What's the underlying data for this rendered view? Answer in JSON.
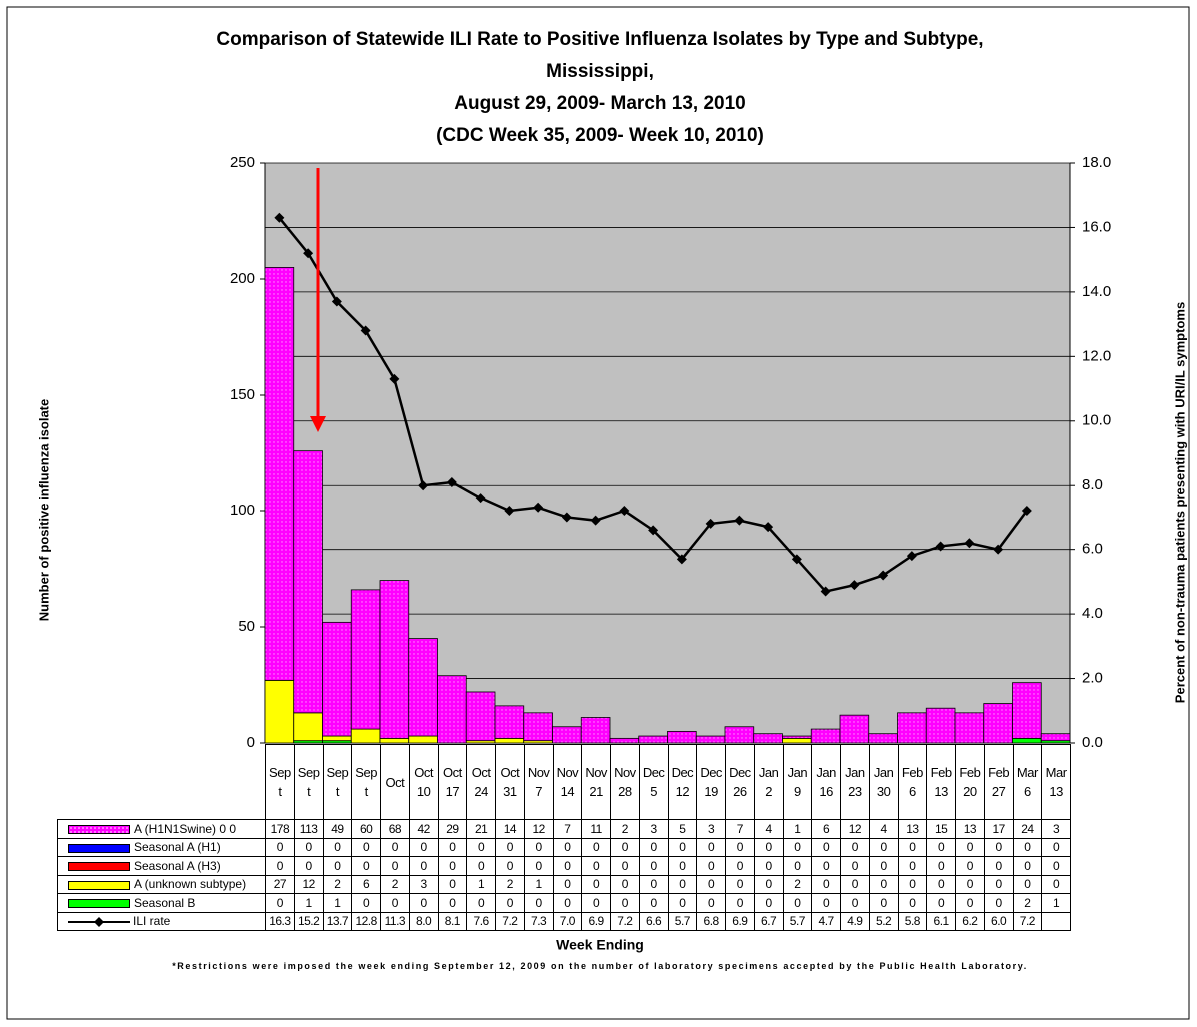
{
  "chart_data": {
    "type": "bar",
    "title": [
      "Comparison of Statewide ILI Rate to Positive Influenza Isolates by Type and Subtype,",
      "Mississippi,",
      "August 29, 2009- March 13, 2010",
      "(CDC Week 35, 2009- Week 10, 2010)"
    ],
    "x_label": "Week Ending",
    "y_label": "Number of positive influenza isolate",
    "y2_label": "Percent of non-trauma patients presenting with URI/IL symptoms",
    "footnote": "*Restrictions were imposed the week ending September 12, 2009 on the number of laboratory specimens accepted by the Public Health Laboratory.",
    "categories": [
      "Sept",
      "Sept",
      "Sept",
      "Sept",
      "Oct",
      "Oct 10",
      "Oct 17",
      "Oct 24",
      "Oct 31",
      "Nov 7",
      "Nov 14",
      "Nov 21",
      "Nov 28",
      "Dec 5",
      "Dec 12",
      "Dec 19",
      "Dec 26",
      "Jan 2",
      "Jan 9",
      "Jan 16",
      "Jan 23",
      "Jan 30",
      "Feb 6",
      "Feb 13",
      "Feb 20",
      "Feb 27",
      "Mar 6",
      "Mar 13"
    ],
    "series": [
      {
        "name": "A (H1N1Swine) 0 0",
        "color": "#ff00ff",
        "values": [
          178,
          113,
          49,
          60,
          68,
          42,
          29,
          21,
          14,
          12,
          7,
          11,
          2,
          3,
          5,
          3,
          7,
          4,
          1,
          6,
          12,
          4,
          13,
          15,
          13,
          17,
          24,
          3
        ]
      },
      {
        "name": "Seasonal A (H1)",
        "color": "#0000ff",
        "values": [
          0,
          0,
          0,
          0,
          0,
          0,
          0,
          0,
          0,
          0,
          0,
          0,
          0,
          0,
          0,
          0,
          0,
          0,
          0,
          0,
          0,
          0,
          0,
          0,
          0,
          0,
          0,
          0
        ]
      },
      {
        "name": "Seasonal A (H3)",
        "color": "#ff0000",
        "values": [
          0,
          0,
          0,
          0,
          0,
          0,
          0,
          0,
          0,
          0,
          0,
          0,
          0,
          0,
          0,
          0,
          0,
          0,
          0,
          0,
          0,
          0,
          0,
          0,
          0,
          0,
          0,
          0
        ]
      },
      {
        "name": "A (unknown subtype)",
        "color": "#ffff00",
        "values": [
          27,
          12,
          2,
          6,
          2,
          3,
          0,
          1,
          2,
          1,
          0,
          0,
          0,
          0,
          0,
          0,
          0,
          0,
          2,
          0,
          0,
          0,
          0,
          0,
          0,
          0,
          0,
          0
        ]
      },
      {
        "name": "Seasonal B",
        "color": "#00ff00",
        "values": [
          0,
          1,
          1,
          0,
          0,
          0,
          0,
          0,
          0,
          0,
          0,
          0,
          0,
          0,
          0,
          0,
          0,
          0,
          0,
          0,
          0,
          0,
          0,
          0,
          0,
          0,
          2,
          1
        ]
      },
      {
        "name": "ILI rate",
        "color": "#000000",
        "type": "line",
        "axis": "y2",
        "values": [
          16.3,
          15.2,
          13.7,
          12.8,
          11.3,
          8.0,
          8.1,
          7.6,
          7.2,
          7.3,
          7.0,
          6.9,
          7.2,
          6.6,
          5.7,
          6.8,
          6.9,
          6.7,
          5.7,
          4.7,
          4.9,
          5.2,
          5.8,
          6.1,
          6.2,
          6.0,
          7.2,
          null
        ],
        "value_labels": [
          "16.3",
          "15.2",
          "13.7",
          "12.8",
          "11.3",
          "8.0",
          "8.1",
          "7.6",
          "7.2",
          "7.3",
          "7.0",
          "6.9",
          "7.2",
          "6.6",
          "5.7",
          "6.8",
          "6.9",
          "6.7",
          "5.7",
          "4.7",
          "4.9",
          "5.2",
          "5.8",
          "6.1",
          "6.2",
          "6.0",
          "7.2",
          null
        ]
      }
    ],
    "ylim": [
      0,
      250
    ],
    "yticks": [
      0,
      50,
      100,
      150,
      200,
      250
    ],
    "y2lim": [
      0,
      18
    ],
    "y2ticks": [
      {
        "value": 0,
        "label": "0.0"
      },
      {
        "value": 2,
        "label": "2.0"
      },
      {
        "value": 4,
        "label": "4.0"
      },
      {
        "value": 6,
        "label": "6.0"
      },
      {
        "value": 8,
        "label": "8.0"
      },
      {
        "value": 10,
        "label": "10.0"
      },
      {
        "value": 12,
        "label": "12.0"
      },
      {
        "value": 14,
        "label": "14.0"
      },
      {
        "value": 16,
        "label": "16.0"
      },
      {
        "value": 18,
        "label": "18.0"
      }
    ],
    "grid": true,
    "stacked": true,
    "data_table": true
  }
}
